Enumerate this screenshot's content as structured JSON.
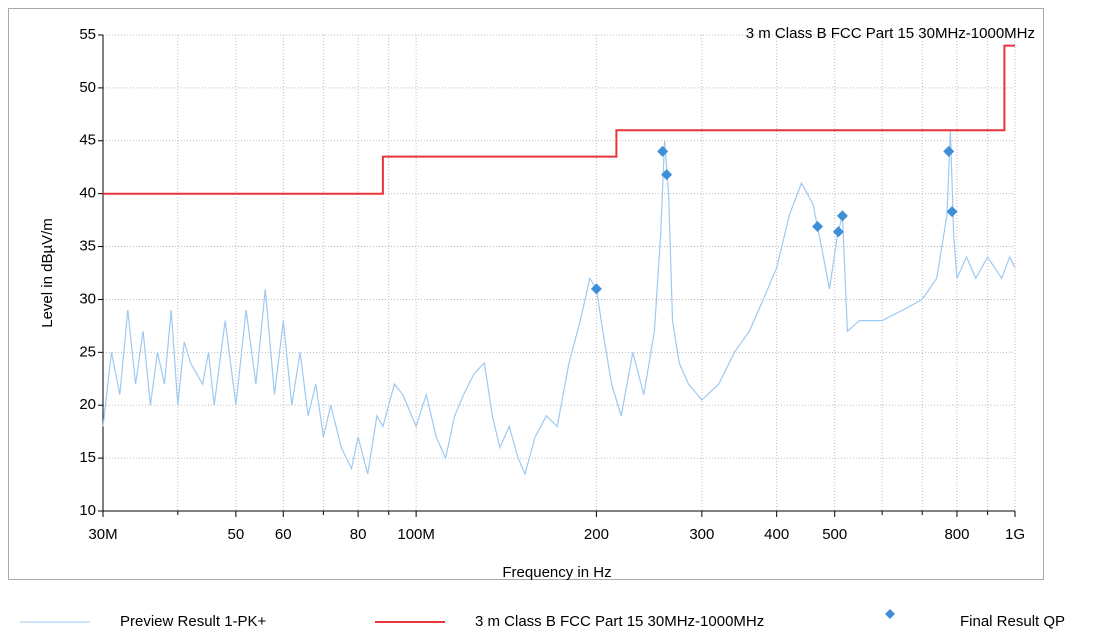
{
  "chart_data": {
    "type": "line",
    "x_label": "Frequency in Hz",
    "y_label": "Level in dBµV/m",
    "xscale": "log",
    "xlim": [
      30000000.0,
      1000000000.0
    ],
    "ylim": [
      10,
      55
    ],
    "xticks": [
      {
        "value": 30000000.0,
        "label": "30M"
      },
      {
        "value": 50000000.0,
        "label": "50"
      },
      {
        "value": 60000000.0,
        "label": "60"
      },
      {
        "value": 80000000.0,
        "label": "80"
      },
      {
        "value": 100000000.0,
        "label": "100M"
      },
      {
        "value": 200000000.0,
        "label": "200"
      },
      {
        "value": 300000000.0,
        "label": "300"
      },
      {
        "value": 400000000.0,
        "label": "400"
      },
      {
        "value": 500000000.0,
        "label": "500"
      },
      {
        "value": 800000000.0,
        "label": "800"
      },
      {
        "value": 1000000000.0,
        "label": "1G"
      }
    ],
    "xminor": [
      40000000.0,
      70000000.0,
      90000000.0,
      600000000.0,
      700000000.0,
      900000000.0
    ],
    "yticks": [
      10,
      15,
      20,
      25,
      30,
      35,
      40,
      45,
      50,
      55
    ],
    "grid": true,
    "legend": "bottom",
    "series": [
      {
        "name": "Preview Result 1-PK+",
        "kind": "line",
        "color": "#9ec9f2",
        "x": [
          30000000.0,
          31000000.0,
          32000000.0,
          33000000.0,
          34000000.0,
          35000000.0,
          36000000.0,
          37000000.0,
          38000000.0,
          39000000.0,
          40000000.0,
          41000000.0,
          42000000.0,
          44000000.0,
          45000000.0,
          46000000.0,
          48000000.0,
          50000000.0,
          52000000.0,
          54000000.0,
          56000000.0,
          58000000.0,
          60000000.0,
          62000000.0,
          64000000.0,
          66000000.0,
          68000000.0,
          70000000.0,
          72000000.0,
          75000000.0,
          78000000.0,
          80000000.0,
          83000000.0,
          86000000.0,
          88000000.0,
          92000000.0,
          95000000.0,
          100000000.0,
          104000000.0,
          108000000.0,
          112000000.0,
          116000000.0,
          120000000.0,
          125000000.0,
          130000000.0,
          134000000.0,
          138000000.0,
          143000000.0,
          148000000.0,
          152000000.0,
          158000000.0,
          165000000.0,
          172000000.0,
          180000000.0,
          188000000.0,
          195000000.0,
          200000000.0,
          205000000.0,
          212000000.0,
          220000000.0,
          230000000.0,
          240000000.0,
          250000000.0,
          256000000.0,
          260000000.0,
          264000000.0,
          268000000.0,
          275000000.0,
          285000000.0,
          300000000.0,
          320000000.0,
          340000000.0,
          360000000.0,
          380000000.0,
          400000000.0,
          420000000.0,
          440000000.0,
          460000000.0,
          475000000.0,
          490000000.0,
          505000000.0,
          515000000.0,
          525000000.0,
          550000000.0,
          600000000.0,
          650000000.0,
          700000000.0,
          740000000.0,
          770000000.0,
          780000000.0,
          790000000.0,
          800000000.0,
          830000000.0,
          860000000.0,
          900000000.0,
          950000000.0,
          980000000.0,
          1000000000.0
        ],
        "values": [
          18,
          25,
          21,
          29,
          22,
          27,
          20,
          25,
          22,
          29,
          20,
          26,
          24,
          22,
          25,
          20,
          28,
          20,
          29,
          22,
          31,
          21,
          28,
          20,
          25,
          19,
          22,
          17,
          20,
          16,
          14,
          17,
          13.5,
          19,
          18,
          22,
          21,
          18,
          21,
          17,
          15,
          19,
          21,
          23,
          24,
          19,
          16,
          18,
          15,
          13.5,
          17,
          19,
          18,
          24,
          28,
          32,
          31,
          27,
          22,
          19,
          25,
          21,
          27,
          36,
          45,
          40,
          28,
          24,
          22,
          20.5,
          22,
          25,
          27,
          30,
          33,
          38,
          41,
          39,
          35,
          31,
          36,
          38,
          27,
          28,
          28,
          29,
          30,
          32,
          38,
          46,
          36,
          32,
          34,
          32,
          34,
          32,
          34,
          33
        ]
      },
      {
        "name": "3 m Class B FCC Part 15 30MHz-1000MHz",
        "kind": "line",
        "color": "#e8343a",
        "x": [
          30000000.0,
          88000000.0,
          88000000.0,
          216000000.0,
          216000000.0,
          960000000.0,
          960000000.0,
          1000000000.0
        ],
        "values": [
          40,
          40,
          43.5,
          43.5,
          46,
          46,
          54,
          54
        ]
      },
      {
        "name": "Final  Result QP",
        "kind": "scatter",
        "color": "#3f8fd6",
        "x": [
          200000000.0,
          258000000.0,
          262000000.0,
          468000000.0,
          507000000.0,
          515000000.0,
          775000000.0,
          785000000.0
        ],
        "values": [
          31,
          44,
          41.8,
          36.9,
          36.4,
          37.9,
          44,
          38.3
        ]
      }
    ]
  }
}
